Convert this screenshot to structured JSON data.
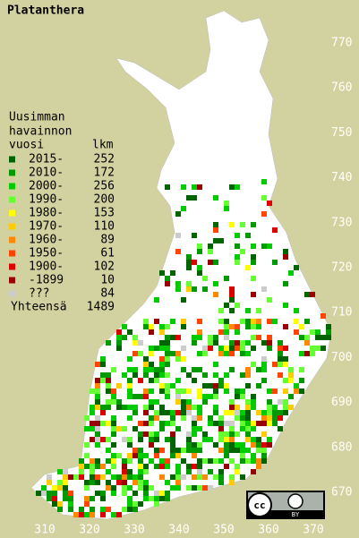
{
  "title": "Platanthera",
  "legend": {
    "heading": [
      "Uusimman",
      "havainnon",
      "vuosi"
    ],
    "count_heading": "lkm",
    "rows": [
      {
        "label": "2015-",
        "count": 252,
        "color": "#006400"
      },
      {
        "label": "2010-",
        "count": 172,
        "color": "#009900"
      },
      {
        "label": "2000-",
        "count": 256,
        "color": "#00cc00"
      },
      {
        "label": "1990-",
        "count": 200,
        "color": "#66ff33"
      },
      {
        "label": "1980-",
        "count": 153,
        "color": "#ffff00"
      },
      {
        "label": "1970-",
        "count": 110,
        "color": "#ffcc00"
      },
      {
        "label": "1960-",
        "count": 89,
        "color": "#ff8800"
      },
      {
        "label": "1950-",
        "count": 61,
        "color": "#ff4400"
      },
      {
        "label": "1900-",
        "count": 102,
        "color": "#dd0000"
      },
      {
        "label": "-1899",
        "count": 10,
        "color": "#990000"
      },
      {
        "label": "???",
        "count": 84,
        "color": "#cccccc"
      }
    ],
    "total_label": "Yhteensä",
    "total": 1489
  },
  "axes": {
    "y_labels": [
      670,
      680,
      690,
      700,
      710,
      720,
      730,
      740,
      750,
      760,
      770
    ],
    "x_labels": [
      310,
      320,
      330,
      340,
      350,
      360,
      370
    ]
  },
  "license": {
    "badge": "cc",
    "by": "BY"
  }
}
